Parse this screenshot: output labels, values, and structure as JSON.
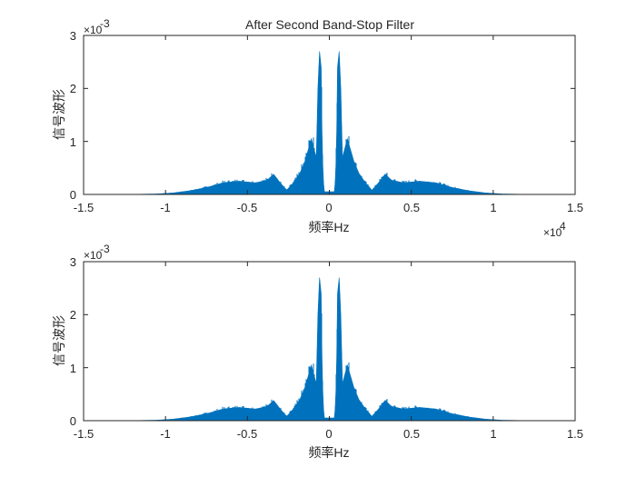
{
  "colors": {
    "series": "#0072bd",
    "axis": "#262626",
    "background": "#ffffff"
  },
  "chart_data": [
    {
      "type": "area",
      "title": "After Second Band-Stop Filter",
      "xlabel": "频率Hz",
      "ylabel": "信号波形",
      "xlim": [
        -15000,
        15000
      ],
      "ylim": [
        0,
        0.003
      ],
      "x_ticks": [
        "-1.5",
        "-1",
        "-0.5",
        "0",
        "0.5",
        "1",
        "1.5"
      ],
      "y_ticks": [
        "0",
        "1",
        "2",
        "3"
      ],
      "y_exponent_base": "×10",
      "y_exponent_power": "-3",
      "x_exponent_base": "×10",
      "x_exponent_power": "4",
      "grid": false,
      "series": [
        {
          "x": [
            -15000,
            -12000,
            -10500,
            -9500,
            -8500,
            -7500,
            -6500,
            -5500,
            -4500,
            -3800,
            -3400,
            -3000,
            -2600,
            -2200,
            -1800,
            -1500,
            -1100,
            -800,
            -700,
            -600,
            -500,
            -450,
            -400,
            -350,
            -300,
            300,
            350,
            400,
            450,
            500,
            600,
            700,
            800,
            1100,
            1500,
            1800,
            2200,
            2600,
            3000,
            3400,
            3800,
            4500,
            5500,
            6500,
            7500,
            8500,
            9500,
            10500,
            12000,
            15000
          ],
          "y": [
            0,
            2e-06,
            1e-05,
            3e-05,
            7e-05,
            0.00013,
            0.00022,
            0.00025,
            0.00022,
            0.00027,
            0.00038,
            0.00022,
            8e-05,
            0.00022,
            0.0004,
            0.00062,
            0.00105,
            0.0007,
            0.002,
            0.0027,
            0.0024,
            0.0012,
            0.00055,
            0.0002,
            5e-05,
            5e-05,
            0.0002,
            0.00055,
            0.0012,
            0.0024,
            0.0027,
            0.002,
            0.0007,
            0.00105,
            0.00062,
            0.0004,
            0.00022,
            8e-05,
            0.00022,
            0.00038,
            0.00027,
            0.00022,
            0.00025,
            0.00022,
            0.00013,
            7e-05,
            3e-05,
            1e-05,
            2e-06,
            0
          ]
        }
      ]
    },
    {
      "type": "area",
      "title": "",
      "xlabel": "频率Hz",
      "ylabel": "信号波形",
      "xlim": [
        -15000,
        15000
      ],
      "ylim": [
        0,
        0.003
      ],
      "x_ticks": [
        "-1.5",
        "-1",
        "-0.5",
        "0",
        "0.5",
        "1",
        "1.5"
      ],
      "y_ticks": [
        "0",
        "1",
        "2",
        "3"
      ],
      "y_exponent_base": "×10",
      "y_exponent_power": "-3",
      "grid": false,
      "series": [
        {
          "x": [
            -15000,
            -12000,
            -10500,
            -9500,
            -8500,
            -7500,
            -6500,
            -5500,
            -4500,
            -3800,
            -3400,
            -3000,
            -2600,
            -2200,
            -1800,
            -1500,
            -1100,
            -800,
            -700,
            -600,
            -500,
            -450,
            -400,
            -350,
            -300,
            300,
            350,
            400,
            450,
            500,
            600,
            700,
            800,
            1100,
            1500,
            1800,
            2200,
            2600,
            3000,
            3400,
            3800,
            4500,
            5500,
            6500,
            7500,
            8500,
            9500,
            10500,
            12000,
            15000
          ],
          "y": [
            0,
            2e-06,
            1e-05,
            3e-05,
            7e-05,
            0.00013,
            0.00022,
            0.00025,
            0.00022,
            0.00027,
            0.00038,
            0.00022,
            8e-05,
            0.00022,
            0.0004,
            0.00062,
            0.00105,
            0.0007,
            0.002,
            0.0027,
            0.0024,
            0.0012,
            0.00055,
            0.0002,
            5e-05,
            5e-05,
            0.0002,
            0.00055,
            0.0012,
            0.0024,
            0.0027,
            0.002,
            0.0007,
            0.00105,
            0.00062,
            0.0004,
            0.00022,
            8e-05,
            0.00022,
            0.00038,
            0.00027,
            0.00022,
            0.00025,
            0.00022,
            0.00013,
            7e-05,
            3e-05,
            1e-05,
            2e-06,
            0
          ]
        }
      ]
    }
  ]
}
